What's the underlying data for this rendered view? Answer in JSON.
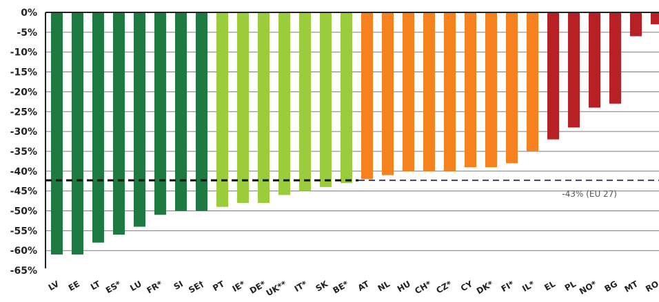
{
  "chart_data": {
    "type": "bar",
    "title": "",
    "xlabel": "",
    "ylabel": "",
    "ylim": [
      -65,
      0
    ],
    "yticks": [
      0,
      -5,
      -10,
      -15,
      -20,
      -25,
      -30,
      -35,
      -40,
      -45,
      -50,
      -55,
      -60,
      -65
    ],
    "ytick_labels": [
      "0%",
      "-5%",
      "-10%",
      "-15%",
      "-20%",
      "-25%",
      "-30%",
      "-35%",
      "-40%",
      "-45%",
      "-50%",
      "-55%",
      "-60%",
      "-65%"
    ],
    "grid": true,
    "categories": [
      "LV",
      "EE",
      "LT",
      "ES*",
      "LU",
      "FR*",
      "SI",
      "SE†",
      "PT",
      "IE*",
      "DE*",
      "UK**",
      "IT*",
      "SK",
      "BE*",
      "AT",
      "NL",
      "HU",
      "CH*",
      "CZ*",
      "CY",
      "DK*",
      "FI*",
      "IL*",
      "EL",
      "PL",
      "NO*",
      "BG",
      "MT",
      "RO"
    ],
    "values": [
      -61,
      -61,
      -58,
      -56,
      -54,
      -51,
      -50,
      -50,
      -49,
      -48,
      -48,
      -46,
      -45,
      -44,
      -43,
      -42,
      -41,
      -40,
      -40,
      -40,
      -39,
      -39,
      -38,
      -35,
      -32,
      -29,
      -24,
      -23,
      -6,
      -3
    ],
    "color_groups": [
      "dark-green",
      "dark-green",
      "dark-green",
      "dark-green",
      "dark-green",
      "dark-green",
      "dark-green",
      "dark-green",
      "light-green",
      "light-green",
      "light-green",
      "light-green",
      "light-green",
      "light-green",
      "light-green",
      "orange",
      "orange",
      "orange",
      "orange",
      "orange",
      "orange",
      "orange",
      "orange",
      "orange",
      "red",
      "red",
      "red",
      "red",
      "red",
      "red"
    ],
    "colors": {
      "dark-green": "#1e7a40",
      "light-green": "#9acc3c",
      "orange": "#f5821f",
      "red": "#b72025"
    },
    "reference_line": {
      "value": -43,
      "label": "-43% (EU 27)",
      "style": "dashed"
    }
  }
}
